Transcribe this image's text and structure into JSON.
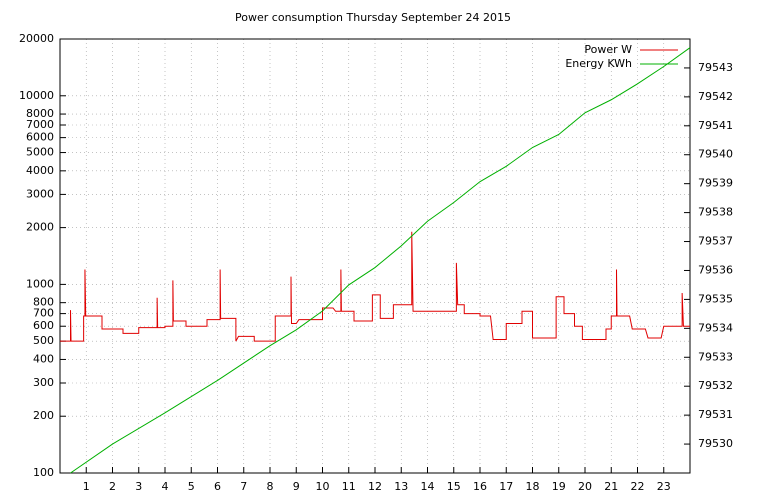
{
  "chart_data": {
    "type": "line",
    "title": "Power consumption Thursday September 24 2015",
    "xlim": [
      0,
      24
    ],
    "xticks": [
      1,
      2,
      3,
      4,
      5,
      6,
      7,
      8,
      9,
      10,
      11,
      12,
      13,
      14,
      15,
      16,
      17,
      18,
      19,
      20,
      21,
      22,
      23
    ],
    "ylim": [
      100,
      20000
    ],
    "log_y": true,
    "yticks": [
      100,
      200,
      300,
      400,
      500,
      600,
      700,
      800,
      1000,
      2000,
      3000,
      4000,
      5000,
      6000,
      7000,
      8000,
      10000,
      20000
    ],
    "y2lim": [
      79529,
      79544
    ],
    "y2ticks": [
      79530,
      79531,
      79532,
      79533,
      79534,
      79535,
      79536,
      79537,
      79538,
      79539,
      79540,
      79541,
      79542,
      79543
    ],
    "grid": true,
    "legend": "top-right",
    "series": [
      {
        "name": "Power W",
        "color": "#e00000",
        "x": [
          0,
          0.4,
          0.4,
          0.42,
          0.9,
          0.9,
          0.95,
          0.95,
          0.98,
          1.6,
          1.6,
          2.4,
          2.4,
          3,
          3,
          3.7,
          3.7,
          3.72,
          4,
          4,
          4.3,
          4.3,
          4.32,
          4.8,
          4.8,
          5.6,
          5.6,
          6.1,
          6.1,
          6.12,
          6.7,
          6.7,
          6.8,
          7.4,
          7.4,
          8.2,
          8.2,
          8.8,
          8.8,
          8.82,
          9,
          9.1,
          10,
          10,
          10.4,
          10.5,
          10.7,
          10.7,
          10.72,
          11.2,
          11.2,
          11.9,
          11.9,
          12.2,
          12.2,
          12.7,
          12.7,
          13.4,
          13.4,
          13.45,
          15.1,
          15.1,
          15.15,
          15.4,
          15.4,
          16,
          16,
          16.4,
          16.5,
          17,
          17,
          17.6,
          17.6,
          18,
          18,
          18.9,
          18.9,
          19.2,
          19.2,
          19.6,
          19.6,
          19.9,
          19.9,
          20.8,
          20.8,
          21,
          21,
          21.2,
          21.2,
          21.22,
          21.7,
          21.8,
          22.3,
          22.4,
          22.9,
          23,
          23.7,
          23.7,
          23.75,
          24
        ],
        "values": [
          500,
          500,
          730,
          500,
          500,
          680,
          680,
          1200,
          680,
          680,
          580,
          580,
          550,
          550,
          590,
          590,
          850,
          590,
          590,
          600,
          600,
          1050,
          640,
          640,
          600,
          600,
          650,
          650,
          1200,
          660,
          660,
          500,
          530,
          530,
          500,
          500,
          680,
          680,
          1100,
          620,
          620,
          650,
          650,
          750,
          750,
          720,
          720,
          1200,
          720,
          720,
          640,
          640,
          880,
          880,
          660,
          660,
          780,
          780,
          1900,
          720,
          720,
          1300,
          780,
          780,
          700,
          700,
          680,
          680,
          510,
          510,
          620,
          620,
          720,
          720,
          520,
          520,
          860,
          860,
          700,
          700,
          600,
          600,
          510,
          510,
          580,
          580,
          680,
          680,
          1200,
          680,
          680,
          580,
          580,
          520,
          520,
          600,
          600,
          900,
          600,
          600
        ]
      },
      {
        "name": "Energy KWh",
        "color": "#00b000",
        "axis": "y2",
        "x": [
          0.4,
          2,
          4,
          6,
          7,
          8,
          9,
          10,
          11,
          12,
          13,
          14,
          15,
          16,
          17,
          18,
          19,
          20,
          21,
          22,
          23,
          24
        ],
        "values": [
          79529.0,
          79530.0,
          79531.08,
          79532.2,
          79532.8,
          79533.4,
          79533.95,
          79534.6,
          79535.5,
          79536.1,
          79536.85,
          79537.7,
          79538.35,
          79539.07,
          79539.6,
          79540.25,
          79540.7,
          79541.45,
          79541.9,
          79542.45,
          79543.05,
          79543.7
        ]
      }
    ]
  }
}
